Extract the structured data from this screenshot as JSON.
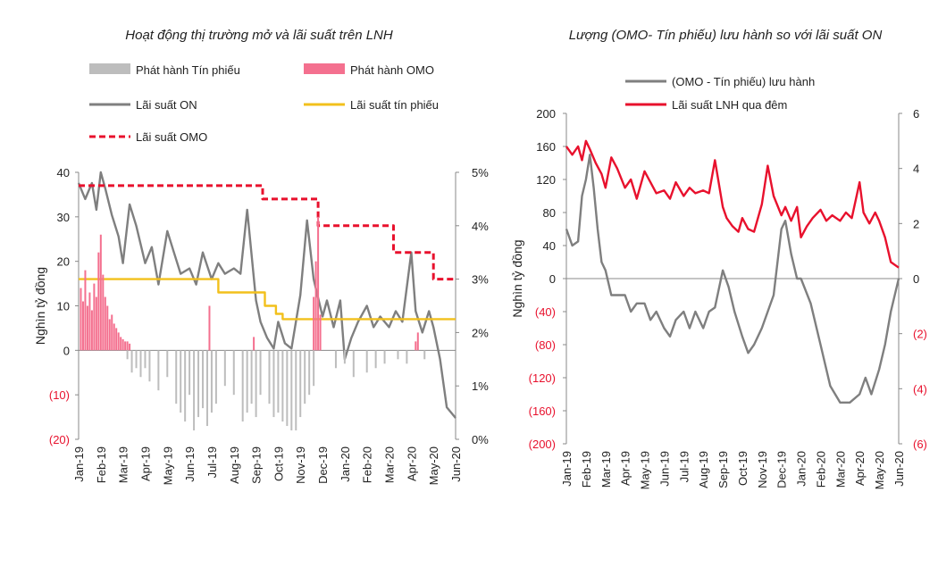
{
  "chart_data": [
    {
      "type": "line",
      "title": "Hoạt động thị trường mở và lãi suất trên LNH",
      "ylabel": "Nghìn tỷ đồng",
      "ylim": [
        -20,
        40
      ],
      "y2lim": [
        0,
        5
      ],
      "yticks": [
        "40",
        "30",
        "20",
        "10",
        "0",
        "(10)",
        "(20)"
      ],
      "y2ticks": [
        "5%",
        "4%",
        "3%",
        "2%",
        "1%",
        "0%"
      ],
      "categories": [
        "Jan-19",
        "Feb-19",
        "Mar-19",
        "Apr-19",
        "May-19",
        "Jun-19",
        "Jul-19",
        "Aug-19",
        "Sep-19",
        "Oct-19",
        "Nov-19",
        "Dec-19",
        "Jan-20",
        "Feb-20",
        "Mar-20",
        "Apr-20",
        "May-20",
        "Jun-20"
      ],
      "legend": [
        {
          "name": "Phát hành Tín phiếu",
          "color": "#bdbdbd"
        },
        {
          "name": "Phát hành OMO",
          "color": "#f4708f"
        },
        {
          "name": "Lãi suất ON",
          "color": "#7f7f7f"
        },
        {
          "name": "Lãi suất tín phiếu",
          "color": "#f2c01c"
        },
        {
          "name": "Lãi suất OMO",
          "color": "#e8112d"
        }
      ],
      "series": [
        {
          "name": "Lãi suất ON",
          "axis": "right",
          "x": [
            0,
            0.3,
            0.6,
            0.8,
            1,
            1.2,
            1.5,
            1.8,
            2,
            2.3,
            2.6,
            3,
            3.3,
            3.6,
            4,
            4.3,
            4.6,
            5,
            5.3,
            5.6,
            6,
            6.3,
            6.6,
            7,
            7.3,
            7.6,
            8,
            8.2,
            8.5,
            8.8,
            9,
            9.3,
            9.6,
            10,
            10.3,
            10.6,
            11,
            11.2,
            11.5,
            11.8,
            12,
            12.3,
            12.6,
            13,
            13.3,
            13.6,
            14,
            14.3,
            14.6,
            15,
            15.2,
            15.5,
            15.8,
            16,
            16.3,
            16.6,
            17
          ],
          "values": [
            4.8,
            4.5,
            4.8,
            4.3,
            5.0,
            4.7,
            4.2,
            3.8,
            3.3,
            4.4,
            4.0,
            3.3,
            3.6,
            2.9,
            3.9,
            3.5,
            3.1,
            3.2,
            2.9,
            3.5,
            3.0,
            3.3,
            3.1,
            3.2,
            3.1,
            4.3,
            2.6,
            2.2,
            1.9,
            1.7,
            2.2,
            1.8,
            1.7,
            2.7,
            4.1,
            3.0,
            2.3,
            2.6,
            2.1,
            2.6,
            1.5,
            1.9,
            2.2,
            2.5,
            2.1,
            2.3,
            2.1,
            2.4,
            2.2,
            3.5,
            2.4,
            2.0,
            2.4,
            2.1,
            1.5,
            0.6,
            0.4
          ]
        },
        {
          "name": "Lãi suất OMO",
          "axis": "right",
          "x": [
            0,
            4.2,
            4.2,
            8.3,
            8.3,
            10.8,
            10.8,
            14.2,
            14.2,
            16,
            16,
            17
          ],
          "values": [
            4.75,
            4.75,
            4.75,
            4.75,
            4.5,
            4.5,
            4.0,
            4.0,
            3.5,
            3.5,
            3.0,
            3.0
          ]
        },
        {
          "name": "Lãi suất tín phiếu",
          "axis": "right",
          "x": [
            0,
            6.3,
            6.3,
            8.4,
            8.4,
            8.9,
            8.9,
            9.2,
            9.2,
            17
          ],
          "values": [
            3.0,
            3.0,
            2.75,
            2.75,
            2.5,
            2.5,
            2.35,
            2.35,
            2.25,
            2.25
          ]
        },
        {
          "name": "Phát hành OMO",
          "axis": "left",
          "x": [
            0.1,
            0.2,
            0.3,
            0.4,
            0.5,
            0.6,
            0.7,
            0.8,
            0.9,
            1.0,
            1.1,
            1.2,
            1.3,
            1.4,
            1.5,
            1.6,
            1.7,
            1.8,
            1.9,
            2.0,
            2.1,
            2.2,
            2.3,
            5.9,
            7.9,
            10.6,
            10.7,
            10.8,
            10.9,
            15.2,
            15.3
          ],
          "values": [
            14,
            11,
            18,
            10,
            13,
            9,
            15,
            12,
            22,
            26,
            17,
            12,
            10,
            7,
            8,
            6,
            5,
            4,
            3,
            2.5,
            2,
            2,
            1.5,
            10,
            3,
            12,
            20,
            30,
            8,
            2,
            4
          ]
        },
        {
          "name": "Phát hành Tín phiếu",
          "axis": "left",
          "x": [
            2.2,
            2.4,
            2.6,
            2.8,
            3.0,
            3.2,
            3.6,
            4.0,
            4.4,
            4.6,
            4.8,
            5.0,
            5.2,
            5.4,
            5.6,
            5.8,
            6.0,
            6.2,
            6.6,
            7.0,
            7.4,
            7.6,
            7.8,
            8.0,
            8.2,
            8.6,
            8.8,
            9.0,
            9.2,
            9.4,
            9.6,
            9.8,
            10.0,
            10.2,
            10.4,
            10.6,
            11.6,
            12.0,
            12.4,
            13.0,
            13.4,
            13.8,
            14.4,
            14.8,
            15.6
          ],
          "values": [
            -2,
            -5,
            -4,
            -6,
            -4,
            -7,
            -9,
            -6,
            -12,
            -14,
            -16,
            -10,
            -18,
            -15,
            -13,
            -17,
            -14,
            -12,
            -8,
            -10,
            -16,
            -14,
            -12,
            -15,
            -10,
            -12,
            -15,
            -14,
            -16,
            -17,
            -18,
            -18,
            -15,
            -12,
            -10,
            -8,
            -4,
            -3,
            -6,
            -5,
            -4,
            -3,
            -2,
            -3,
            -2
          ]
        }
      ]
    },
    {
      "type": "line",
      "title": "Lượng (OMO- Tín phiếu) lưu hành so với lãi suất ON",
      "ylabel": "Nghìn tỷ đồng",
      "ylim": [
        -200,
        200
      ],
      "y2lim": [
        -6,
        6
      ],
      "yticks": [
        "200",
        "160",
        "120",
        "80",
        "40",
        "0",
        "(40)",
        "(80)",
        "(120)",
        "(160)",
        "(200)"
      ],
      "y2ticks": [
        "6",
        "4",
        "2",
        "0",
        "(2)",
        "(4)",
        "(6)"
      ],
      "categories": [
        "Jan-19",
        "Feb-19",
        "Mar-19",
        "Apr-19",
        "May-19",
        "Jun-19",
        "Jul-19",
        "Aug-19",
        "Sep-19",
        "Oct-19",
        "Nov-19",
        "Dec-19",
        "Jan-20",
        "Feb-20",
        "Mar-20",
        "Apr-20",
        "May-20",
        "Jun-20"
      ],
      "legend": [
        {
          "name": "(OMO - Tín phiếu) lưu hành",
          "color": "#7f7f7f"
        },
        {
          "name": "Lãi suất LNH qua đêm",
          "color": "#e8112d"
        }
      ],
      "series": [
        {
          "name": "(OMO - Tín phiếu) lưu hành",
          "axis": "left",
          "x": [
            0,
            0.3,
            0.6,
            0.8,
            1,
            1.2,
            1.4,
            1.6,
            1.8,
            2,
            2.3,
            2.6,
            3,
            3.3,
            3.6,
            4,
            4.3,
            4.6,
            5,
            5.3,
            5.6,
            6,
            6.3,
            6.6,
            7,
            7.3,
            7.6,
            8,
            8.3,
            8.6,
            9,
            9.3,
            9.6,
            10,
            10.3,
            10.6,
            11,
            11.2,
            11.5,
            11.8,
            12,
            12.5,
            13,
            13.5,
            14,
            14.5,
            15,
            15.3,
            15.6,
            16,
            16.3,
            16.6,
            17
          ],
          "values": [
            60,
            40,
            45,
            100,
            120,
            150,
            110,
            60,
            20,
            10,
            -20,
            -20,
            -20,
            -40,
            -30,
            -30,
            -50,
            -40,
            -60,
            -70,
            -50,
            -40,
            -60,
            -40,
            -60,
            -40,
            -35,
            10,
            -10,
            -40,
            -70,
            -90,
            -80,
            -60,
            -40,
            -20,
            60,
            70,
            30,
            0,
            0,
            -30,
            -80,
            -130,
            -150,
            -150,
            -140,
            -120,
            -140,
            -110,
            -80,
            -40,
            0
          ]
        },
        {
          "name": "Lãi suất LNH qua đêm",
          "axis": "right",
          "x": [
            0,
            0.3,
            0.6,
            0.8,
            1,
            1.2,
            1.5,
            1.8,
            2,
            2.3,
            2.6,
            3,
            3.3,
            3.6,
            4,
            4.3,
            4.6,
            5,
            5.3,
            5.6,
            6,
            6.3,
            6.6,
            7,
            7.3,
            7.6,
            8,
            8.2,
            8.5,
            8.8,
            9,
            9.3,
            9.6,
            10,
            10.3,
            10.6,
            11,
            11.2,
            11.5,
            11.8,
            12,
            12.3,
            12.6,
            13,
            13.3,
            13.6,
            14,
            14.3,
            14.6,
            15,
            15.2,
            15.5,
            15.8,
            16,
            16.3,
            16.6,
            17
          ],
          "values": [
            4.8,
            4.5,
            4.8,
            4.3,
            5.0,
            4.7,
            4.2,
            3.8,
            3.3,
            4.4,
            4.0,
            3.3,
            3.6,
            2.9,
            3.9,
            3.5,
            3.1,
            3.2,
            2.9,
            3.5,
            3.0,
            3.3,
            3.1,
            3.2,
            3.1,
            4.3,
            2.6,
            2.2,
            1.9,
            1.7,
            2.2,
            1.8,
            1.7,
            2.7,
            4.1,
            3.0,
            2.3,
            2.6,
            2.1,
            2.6,
            1.5,
            1.9,
            2.2,
            2.5,
            2.1,
            2.3,
            2.1,
            2.4,
            2.2,
            3.5,
            2.4,
            2.0,
            2.4,
            2.1,
            1.5,
            0.6,
            0.4
          ]
        }
      ]
    }
  ]
}
